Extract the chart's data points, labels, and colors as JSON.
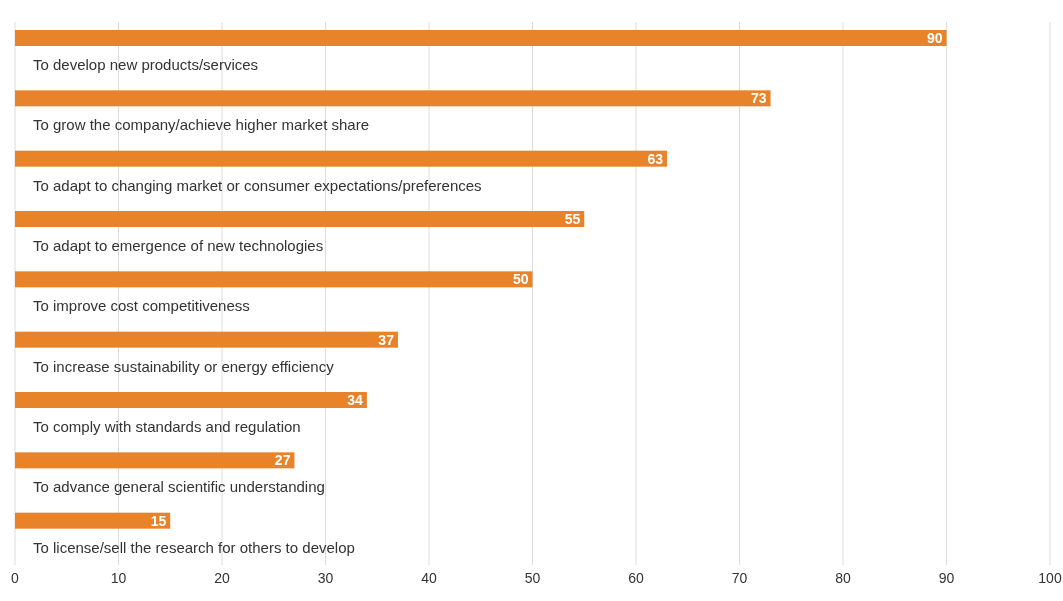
{
  "chart_data": {
    "type": "bar",
    "orientation": "horizontal",
    "categories": [
      "To develop new products/services",
      "To grow the company/achieve higher market share",
      "To adapt to changing market or consumer expectations/preferences",
      "To adapt to emergence of new technologies",
      "To improve cost competitiveness",
      "To increase sustainability or energy efficiency",
      "To comply with standards and regulation",
      "To advance general scientific understanding",
      "To license/sell the research for others to develop"
    ],
    "values": [
      90,
      73,
      63,
      55,
      50,
      37,
      34,
      27,
      15
    ],
    "color": "#e8832a",
    "xlim": [
      0,
      100
    ],
    "xticks": [
      0,
      10,
      20,
      30,
      40,
      50,
      60,
      70,
      80,
      90,
      100
    ],
    "grid": "x",
    "data_labels": true
  }
}
